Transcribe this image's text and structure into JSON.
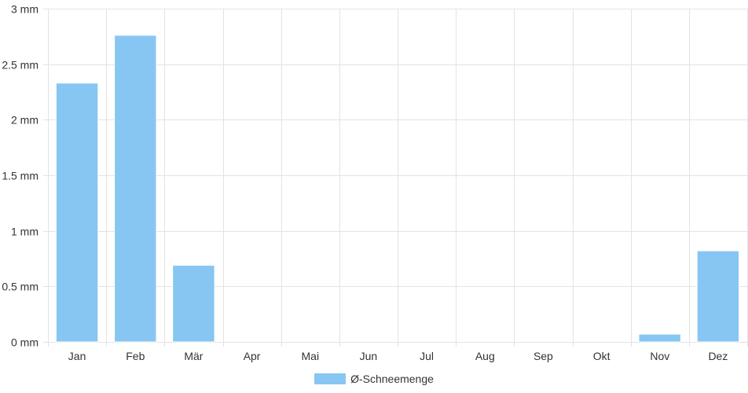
{
  "chart_data": {
    "type": "bar",
    "categories": [
      "Jan",
      "Feb",
      "Mär",
      "Apr",
      "Mai",
      "Jun",
      "Jul",
      "Aug",
      "Sep",
      "Okt",
      "Nov",
      "Dez"
    ],
    "series": [
      {
        "name": "Ø-Schneemenge",
        "values": [
          2.33,
          2.76,
          0.69,
          0,
          0,
          0,
          0,
          0,
          0,
          0,
          0.07,
          0.82
        ],
        "color": "#87c6f2"
      }
    ],
    "y_ticks": [
      "0 mm",
      "0.5 mm",
      "1 mm",
      "1.5 mm",
      "2 mm",
      "2.5 mm",
      "3 mm"
    ],
    "ylim": [
      0,
      3
    ],
    "grid": true,
    "legend_position": "bottom-center"
  }
}
